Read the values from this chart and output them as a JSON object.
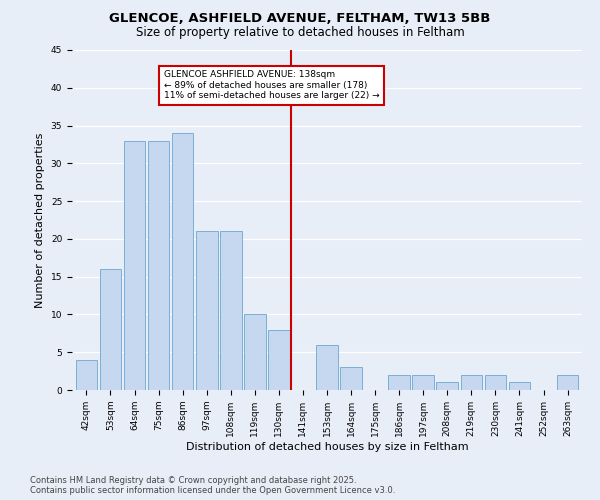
{
  "title": "GLENCOE, ASHFIELD AVENUE, FELTHAM, TW13 5BB",
  "subtitle": "Size of property relative to detached houses in Feltham",
  "xlabel": "Distribution of detached houses by size in Feltham",
  "ylabel": "Number of detached properties",
  "categories": [
    "42sqm",
    "53sqm",
    "64sqm",
    "75sqm",
    "86sqm",
    "97sqm",
    "108sqm",
    "119sqm",
    "130sqm",
    "141sqm",
    "153sqm",
    "164sqm",
    "175sqm",
    "186sqm",
    "197sqm",
    "208sqm",
    "219sqm",
    "230sqm",
    "241sqm",
    "252sqm",
    "263sqm"
  ],
  "values": [
    4,
    16,
    33,
    33,
    34,
    21,
    21,
    10,
    8,
    0,
    6,
    3,
    0,
    2,
    2,
    1,
    2,
    2,
    1,
    0,
    2
  ],
  "bar_color": "#c5d8ef",
  "bar_edge_color": "#7bafd4",
  "vline_color": "#cc0000",
  "vline_x_index": 9,
  "annotation_title": "GLENCOE ASHFIELD AVENUE: 138sqm",
  "annotation_line1": "← 89% of detached houses are smaller (178)",
  "annotation_line2": "11% of semi-detached houses are larger (22) →",
  "annotation_box_color": "#ffffff",
  "annotation_box_edge": "#cc0000",
  "ylim": [
    0,
    45
  ],
  "yticks": [
    0,
    5,
    10,
    15,
    20,
    25,
    30,
    35,
    40,
    45
  ],
  "bg_color": "#e8eef7",
  "grid_color": "#ffffff",
  "footer": "Contains HM Land Registry data © Crown copyright and database right 2025.\nContains public sector information licensed under the Open Government Licence v3.0.",
  "title_fontsize": 9.5,
  "subtitle_fontsize": 8.5,
  "axis_label_fontsize": 8,
  "tick_fontsize": 6.5,
  "annotation_fontsize": 6.5,
  "footer_fontsize": 6
}
